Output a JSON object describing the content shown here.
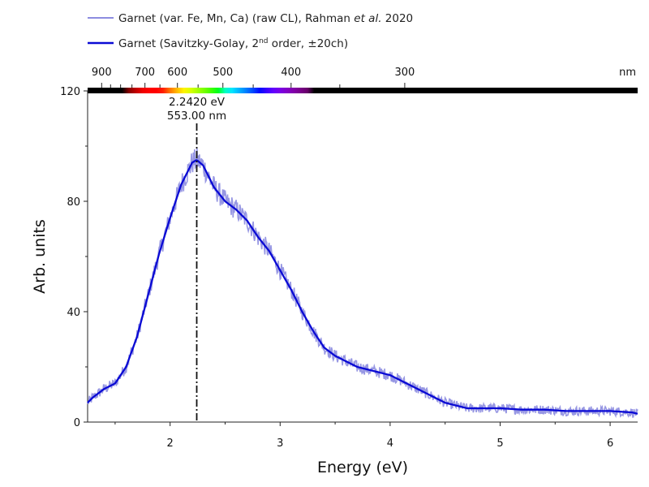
{
  "chart_data": {
    "type": "line",
    "title": "",
    "xlabel": "Energy (eV)",
    "ylabel": "Arb. units",
    "xlim": [
      1.25,
      6.25
    ],
    "ylim": [
      0,
      120
    ],
    "x_ticks": [
      2,
      3,
      4,
      5,
      6
    ],
    "y_ticks": [
      0,
      40,
      80,
      120
    ],
    "top_axis": {
      "unit_label": "nm",
      "ticks": [
        900,
        700,
        600,
        500,
        400,
        300
      ],
      "color_bar": true
    },
    "grid": false,
    "legend_position": "top-left",
    "series": [
      {
        "name": "Garnet (var. Fe, Mn, Ca) (raw CL), Rahman et al. 2020",
        "color": "#8c8ce0",
        "style": "noisy",
        "x": [
          1.25,
          1.3,
          1.4,
          1.5,
          1.6,
          1.7,
          1.8,
          1.9,
          2.0,
          2.1,
          2.2,
          2.242,
          2.3,
          2.4,
          2.5,
          2.6,
          2.7,
          2.8,
          2.9,
          3.0,
          3.1,
          3.2,
          3.3,
          3.4,
          3.5,
          3.6,
          3.7,
          3.8,
          3.9,
          4.0,
          4.1,
          4.2,
          4.3,
          4.4,
          4.5,
          4.6,
          4.7,
          4.8,
          4.9,
          5.0,
          5.2,
          5.4,
          5.6,
          5.8,
          6.0,
          6.2,
          6.25
        ],
        "y": [
          7,
          9,
          12,
          14,
          20,
          31,
          46,
          61,
          74,
          86,
          94,
          95,
          93,
          85,
          80,
          77,
          73,
          67,
          62,
          55,
          48,
          40,
          33,
          27,
          24,
          22,
          20,
          19,
          18,
          17,
          15,
          13,
          11,
          9,
          7,
          6,
          5,
          5,
          5,
          5,
          4.5,
          4.5,
          4,
          4,
          4,
          3.5,
          3
        ]
      },
      {
        "name": "Garnet (Savitzky-Golay, 2nd order, ±20ch)",
        "color": "#0a0ad4",
        "style": "smooth",
        "x": [
          1.25,
          1.3,
          1.4,
          1.5,
          1.6,
          1.7,
          1.8,
          1.9,
          2.0,
          2.1,
          2.2,
          2.242,
          2.3,
          2.4,
          2.5,
          2.6,
          2.7,
          2.8,
          2.9,
          3.0,
          3.1,
          3.2,
          3.3,
          3.4,
          3.5,
          3.6,
          3.7,
          3.8,
          3.9,
          4.0,
          4.1,
          4.2,
          4.3,
          4.4,
          4.5,
          4.6,
          4.7,
          4.8,
          4.9,
          5.0,
          5.2,
          5.4,
          5.6,
          5.8,
          6.0,
          6.2,
          6.25
        ],
        "y": [
          7,
          9,
          12,
          14,
          20,
          31,
          46,
          61,
          74,
          86,
          94,
          95,
          93,
          85,
          80,
          77,
          73,
          67,
          62,
          55,
          48,
          40,
          33,
          27,
          24,
          22,
          20,
          19,
          18,
          17,
          15,
          13,
          11,
          9,
          7,
          6,
          5,
          5,
          5,
          5,
          4.5,
          4.5,
          4,
          4,
          4,
          3.5,
          3
        ]
      }
    ],
    "annotations": [
      {
        "x": 2.242,
        "line_style": "dash-dot",
        "label_ev": "2.2420 eV",
        "label_nm": "553.00 nm"
      }
    ]
  },
  "legend": {
    "raw_prefix": "Garnet (var. Fe, Mn, Ca) (raw CL), Rahman ",
    "raw_italic": "et al.",
    "raw_suffix": " 2020",
    "smooth_prefix": "Garnet (Savitzky-Golay, 2",
    "smooth_sup": "nd",
    "smooth_suffix": " order, ±20ch)"
  }
}
